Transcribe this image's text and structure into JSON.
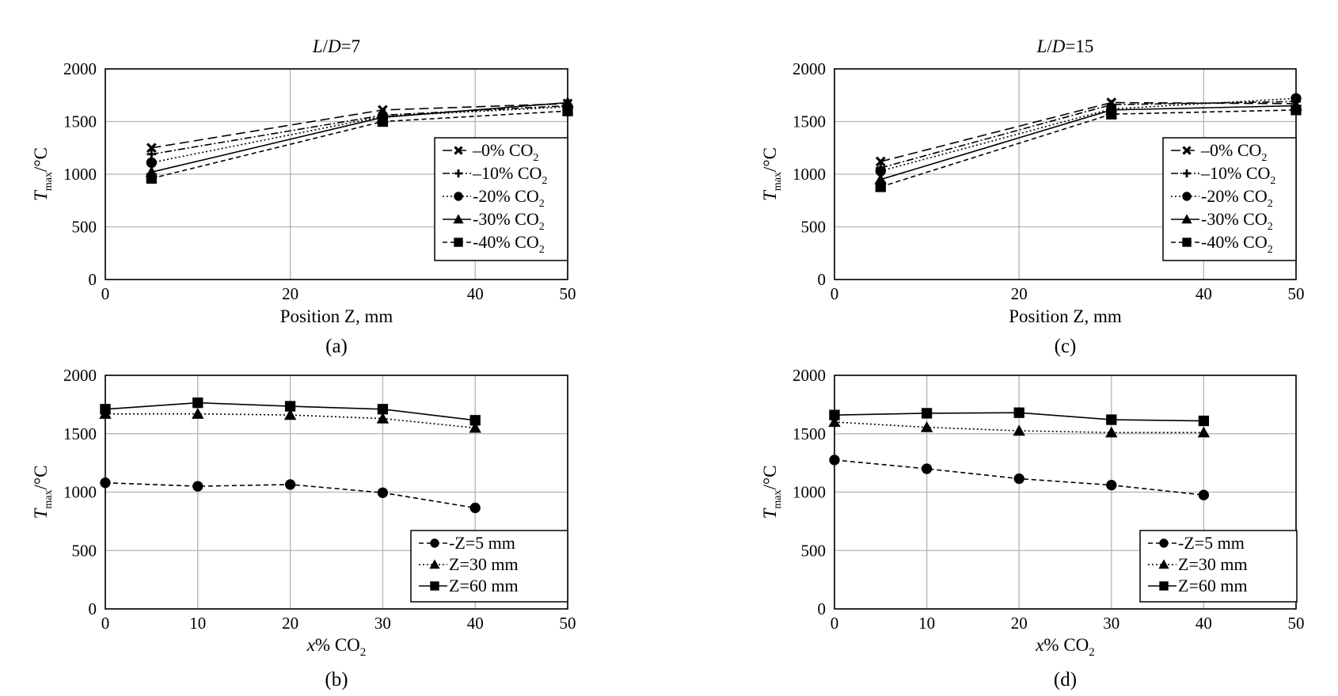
{
  "chart_data": [
    {
      "type": "line",
      "title_parts": [
        "L",
        "/",
        "D",
        "=7"
      ],
      "caption": "(a)",
      "xlabel": "Position Z, mm",
      "ylabel_parts": [
        "T",
        "max",
        "/°C"
      ],
      "xlim": [
        0,
        50
      ],
      "ylim": [
        0,
        2000
      ],
      "xticks": [
        "0",
        "20",
        "40",
        "50"
      ],
      "xtick_values": [
        0,
        20,
        40,
        50
      ],
      "yticks": [
        "0",
        "500",
        "1000",
        "1500",
        "2000"
      ],
      "ytick_values": [
        0,
        500,
        1000,
        1500,
        2000
      ],
      "grid": true,
      "legend_position": "right",
      "series": [
        {
          "name": "–0% CO",
          "sub": "2",
          "marker": "x",
          "dash": "12 6",
          "x": [
            5,
            30,
            50
          ],
          "y": [
            1250,
            1610,
            1670
          ]
        },
        {
          "name": "–10% CO",
          "sub": "2",
          "marker": "plus",
          "dash": "9 3 2 3",
          "x": [
            5,
            30,
            50
          ],
          "y": [
            1190,
            1560,
            1650
          ]
        },
        {
          "name": "-20% CO",
          "sub": "2",
          "marker": "circle",
          "dash": "2 3",
          "x": [
            5,
            30,
            50
          ],
          "y": [
            1110,
            1550,
            1640
          ]
        },
        {
          "name": "-30% CO",
          "sub": "2",
          "marker": "triangle",
          "dash": "",
          "x": [
            5,
            30,
            50
          ],
          "y": [
            1020,
            1540,
            1680
          ]
        },
        {
          "name": "-40% CO",
          "sub": "2",
          "marker": "square",
          "dash": "6 4",
          "x": [
            5,
            30,
            50
          ],
          "y": [
            960,
            1500,
            1600
          ]
        }
      ]
    },
    {
      "type": "line",
      "caption": "(b)",
      "xlabel_main": "x",
      "xlabel_rest": "%  CO",
      "xlabel_sub": "2",
      "ylabel_parts": [
        "T",
        "max",
        "/°C"
      ],
      "xlim": [
        0,
        50
      ],
      "ylim": [
        0,
        2000
      ],
      "xticks": [
        "0",
        "10",
        "20",
        "30",
        "40",
        "50"
      ],
      "xtick_values": [
        0,
        10,
        20,
        30,
        40,
        50
      ],
      "yticks": [
        "0",
        "500",
        "1000",
        "1500",
        "2000"
      ],
      "ytick_values": [
        0,
        500,
        1000,
        1500,
        2000
      ],
      "grid": true,
      "legend_position": "bottom-right",
      "series": [
        {
          "name": "-Z=5 mm",
          "marker": "circle",
          "dash": "6 4",
          "x": [
            0,
            10,
            20,
            30,
            40
          ],
          "y": [
            1080,
            1050,
            1065,
            995,
            865
          ]
        },
        {
          "name": "Z=30 mm",
          "marker": "triangle",
          "dash": "2 3",
          "x": [
            0,
            10,
            20,
            30,
            40
          ],
          "y": [
            1670,
            1670,
            1660,
            1630,
            1550
          ]
        },
        {
          "name": "Z=60 mm",
          "marker": "square",
          "dash": "",
          "x": [
            0,
            10,
            20,
            30,
            40
          ],
          "y": [
            1710,
            1765,
            1735,
            1710,
            1615
          ]
        }
      ]
    },
    {
      "type": "line",
      "title_parts": [
        "L",
        "/",
        "D",
        "=15"
      ],
      "caption": "(c)",
      "xlabel": "Position Z, mm",
      "ylabel_parts": [
        "T",
        "max",
        "/°C"
      ],
      "xlim": [
        0,
        50
      ],
      "ylim": [
        0,
        2000
      ],
      "xticks": [
        "0",
        "20",
        "40",
        "50"
      ],
      "xtick_values": [
        0,
        20,
        40,
        50
      ],
      "yticks": [
        "0",
        "500",
        "1000",
        "1500",
        "2000"
      ],
      "ytick_values": [
        0,
        500,
        1000,
        1500,
        2000
      ],
      "grid": true,
      "legend_position": "right",
      "series": [
        {
          "name": "–0% CO",
          "sub": "2",
          "marker": "x",
          "dash": "12 6",
          "x": [
            5,
            30,
            50
          ],
          "y": [
            1120,
            1680,
            1670
          ]
        },
        {
          "name": "–10% CO",
          "sub": "2",
          "marker": "plus",
          "dash": "9 3 2 3",
          "x": [
            5,
            30,
            50
          ],
          "y": [
            1060,
            1660,
            1690
          ]
        },
        {
          "name": "-20% CO",
          "sub": "2",
          "marker": "circle",
          "dash": "2 3",
          "x": [
            5,
            30,
            50
          ],
          "y": [
            1030,
            1620,
            1720
          ]
        },
        {
          "name": "-30% CO",
          "sub": "2",
          "marker": "triangle",
          "dash": "",
          "x": [
            5,
            30,
            50
          ],
          "y": [
            950,
            1610,
            1650
          ]
        },
        {
          "name": "-40% CO",
          "sub": "2",
          "marker": "square",
          "dash": "6 4",
          "x": [
            5,
            30,
            50
          ],
          "y": [
            880,
            1570,
            1610
          ]
        }
      ]
    },
    {
      "type": "line",
      "caption": "(d)",
      "xlabel_main": "x",
      "xlabel_rest": "%  CO",
      "xlabel_sub": "2",
      "ylabel_parts": [
        "T",
        "max",
        "/°C"
      ],
      "xlim": [
        0,
        50
      ],
      "ylim": [
        0,
        2000
      ],
      "xticks": [
        "0",
        "10",
        "20",
        "30",
        "40",
        "50"
      ],
      "xtick_values": [
        0,
        10,
        20,
        30,
        40,
        50
      ],
      "yticks": [
        "0",
        "500",
        "1000",
        "1500",
        "2000"
      ],
      "ytick_values": [
        0,
        500,
        1000,
        1500,
        2000
      ],
      "grid": true,
      "legend_position": "bottom-right",
      "series": [
        {
          "name": "-Z=5 mm",
          "marker": "circle",
          "dash": "6 4",
          "x": [
            0,
            10,
            20,
            30,
            40
          ],
          "y": [
            1275,
            1200,
            1115,
            1060,
            975
          ]
        },
        {
          "name": "Z=30 mm",
          "marker": "triangle",
          "dash": "2 3",
          "x": [
            0,
            10,
            20,
            30,
            40
          ],
          "y": [
            1600,
            1555,
            1525,
            1510,
            1510
          ]
        },
        {
          "name": "Z=60 mm",
          "marker": "square",
          "dash": "",
          "x": [
            0,
            10,
            20,
            30,
            40
          ],
          "y": [
            1660,
            1675,
            1680,
            1620,
            1610
          ]
        }
      ]
    }
  ]
}
